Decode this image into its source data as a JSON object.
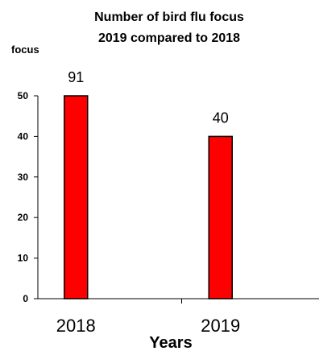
{
  "chart_data": {
    "type": "bar",
    "title_lines": [
      "Number of bird flu focus",
      "2019 compared to 2018"
    ],
    "ylabel": "focus",
    "xlabel": "Years",
    "categories": [
      "2018",
      "2019"
    ],
    "values": [
      91,
      40
    ],
    "data_labels": [
      "91",
      "40"
    ],
    "ylim": [
      0,
      50
    ],
    "yticks": [
      0,
      10,
      20,
      30,
      40,
      50
    ],
    "bar_color": "#ff0000",
    "bar_edge_color": "#000000",
    "grid": false,
    "legend": "none"
  }
}
